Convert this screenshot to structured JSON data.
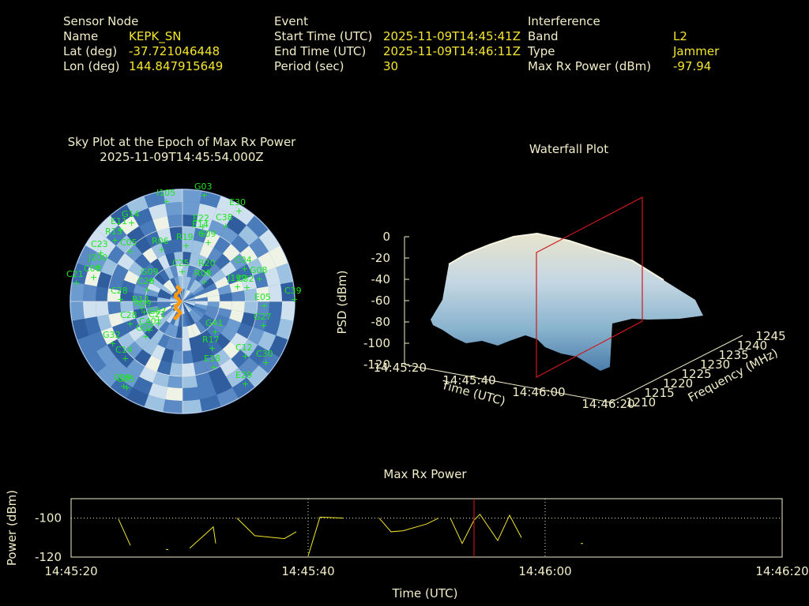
{
  "sensor": {
    "heading": "Sensor Node",
    "name_label": "Name",
    "name_value": "KEPK_SN",
    "lat_label": "Lat (deg)",
    "lat_value": "-37.721046448",
    "lon_label": "Lon (deg)",
    "lon_value": "144.847915649"
  },
  "event": {
    "heading": "Event",
    "start_label": "Start Time (UTC)",
    "start_value": "2025-11-09T14:45:41Z",
    "end_label": "End Time (UTC)",
    "end_value": "2025-11-09T14:46:11Z",
    "period_label": "Period (sec)",
    "period_value": "30"
  },
  "interference": {
    "heading": "Interference",
    "band_label": "Band",
    "band_value": "L2",
    "type_label": "Type",
    "type_value": "Jammer",
    "power_label": "Max Rx Power (dBm)",
    "power_value": "-97.94"
  },
  "skyplot": {
    "title_line1": "Sky Plot at the Epoch of Max Rx Power",
    "title_line2": "2025-11-09T14:45:54.000Z",
    "satellites": [
      "I105",
      "G03",
      "E30",
      "G14",
      "E11",
      "E22",
      "C38",
      "E14",
      "G09",
      "R13",
      "C23",
      "C05",
      "R06",
      "R19",
      "C04",
      "G08",
      "J200",
      "G09",
      "C20",
      "C25",
      "R20",
      "R05",
      "C32",
      "J199",
      "C21",
      "C39",
      "E05",
      "C28",
      "R09",
      "G27",
      "C28",
      "R13",
      "C21",
      "G41",
      "G32",
      "G07",
      "C14",
      "R17",
      "E18",
      "C30",
      "C09",
      "E29",
      "G05",
      "G02",
      "C40",
      "C12",
      "C06"
    ]
  },
  "waterfall": {
    "title": "Waterfall Plot",
    "zlabel": "PSD (dBm)",
    "xlabel": "Time (UTC)",
    "ylabel": "Frequency (MHz)",
    "zticks": [
      "0",
      "-20",
      "-40",
      "-60",
      "-80",
      "-100",
      "-120"
    ],
    "xticks": [
      "14:45:20",
      "14:45:40",
      "14:46:00",
      "14:46:20"
    ],
    "yticks": [
      "1210",
      "1215",
      "1220",
      "1225",
      "1230",
      "1235",
      "1240",
      "1245"
    ]
  },
  "chart_data": {
    "type": "line",
    "title": "Max Rx Power",
    "xlabel": "Time (UTC)",
    "ylabel": "Power (dBm)",
    "xlim": [
      "14:45:20",
      "14:46:20"
    ],
    "ylim": [
      -120,
      -90
    ],
    "yticks": [
      "-100",
      "-120"
    ],
    "xticks": [
      "14:45:20",
      "14:45:40",
      "14:46:00",
      "14:46:20"
    ],
    "grid": true,
    "marker_time": "14:45:54",
    "series": [
      {
        "color": "#f5e62e",
        "segments": [
          [
            [
              24,
              -100.5
            ],
            [
              25,
              -114
            ]
          ],
          [
            [
              28,
              -116
            ],
            [
              28.2,
              -116.2
            ]
          ],
          [
            [
              30,
              -115.5
            ],
            [
              31,
              -110
            ],
            [
              32,
              -104.5
            ],
            [
              32.2,
              -113
            ]
          ],
          [
            [
              34,
              -100
            ],
            [
              35.5,
              -109
            ],
            [
              38,
              -110.5
            ],
            [
              39,
              -107
            ]
          ],
          [
            [
              40,
              -119.5
            ],
            [
              41,
              -99.5
            ],
            [
              43,
              -100
            ]
          ],
          [
            [
              46,
              -100
            ],
            [
              47,
              -107
            ],
            [
              48,
              -106.5
            ],
            [
              50,
              -103
            ],
            [
              51,
              -100
            ]
          ],
          [
            [
              52,
              -100
            ],
            [
              53,
              -113
            ],
            [
              54,
              -101
            ],
            [
              54.5,
              -98
            ],
            [
              56,
              -111.5
            ],
            [
              57,
              -98.5
            ],
            [
              58,
              -110
            ]
          ],
          [
            [
              63,
              -113
            ],
            [
              63.2,
              -113
            ]
          ]
        ]
      }
    ]
  }
}
